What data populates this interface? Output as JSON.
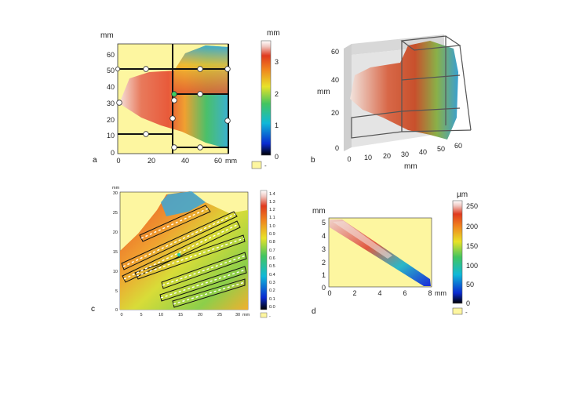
{
  "panels": {
    "a": {
      "letter": "a",
      "unit_top": "mm",
      "unit_right": "mm",
      "yticks": [
        "60",
        "50",
        "40",
        "30",
        "20",
        "10",
        "0"
      ],
      "xticks": [
        "0",
        "20",
        "40",
        "60"
      ],
      "colorbar_unit": "mm",
      "colorbar_ticks": [
        "3",
        "2",
        "1",
        "0"
      ],
      "legend_dash": "-"
    },
    "b": {
      "letter": "b",
      "axis_label_y": "mm",
      "axis_label_x": "mm",
      "yticks": [
        "60",
        "40",
        "20",
        "0"
      ],
      "xticks": [
        "0",
        "10",
        "20",
        "30",
        "40",
        "50",
        "60"
      ]
    },
    "c": {
      "letter": "c",
      "unit_top": "mm",
      "unit_right": "mm",
      "yticks": [
        "30",
        "25",
        "20",
        "15",
        "10",
        "5",
        "0"
      ],
      "xticks": [
        "0",
        "5",
        "10",
        "15",
        "20",
        "25",
        "30"
      ],
      "colorbar_ticks": [
        "1.4",
        "1.3",
        "1.2",
        "1.1",
        "1.0",
        "0.9",
        "0.8",
        "0.7",
        "0.6",
        "0.5",
        "0.4",
        "0.3",
        "0.2",
        "0.1",
        "0.0"
      ],
      "legend_dash": "-"
    },
    "d": {
      "letter": "d",
      "unit_top": "mm",
      "unit_right": "mm",
      "yticks": [
        "5",
        "4",
        "3",
        "2",
        "1",
        "0"
      ],
      "xticks": [
        "0",
        "2",
        "4",
        "6",
        "8"
      ],
      "colorbar_unit": "µm",
      "colorbar_ticks": [
        "250",
        "200",
        "150",
        "100",
        "50",
        "0"
      ],
      "legend_dash": "-"
    }
  },
  "colors": {
    "background_fill": "#fdf6a0",
    "grid_line": "#111111",
    "marker_fill": "#ffffff"
  }
}
